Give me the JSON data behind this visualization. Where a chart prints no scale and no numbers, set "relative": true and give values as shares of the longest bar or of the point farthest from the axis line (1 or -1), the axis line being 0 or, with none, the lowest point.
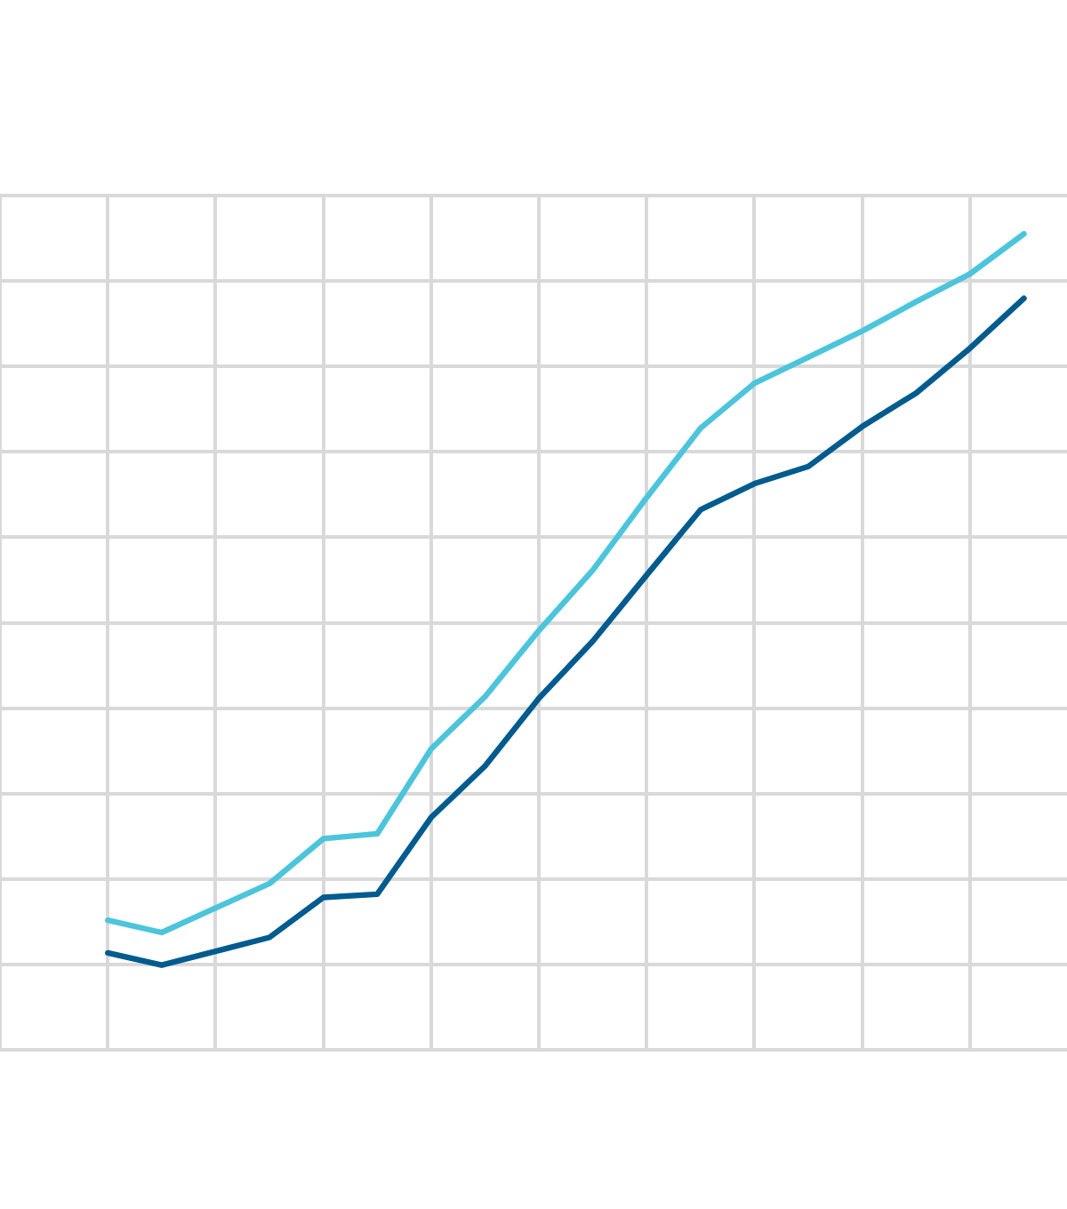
{
  "chart_data": {
    "type": "line",
    "relative": true,
    "grid": true,
    "legend": false,
    "marker": "none",
    "line_style": "solid",
    "categories": [
      null,
      null,
      null,
      null,
      null,
      null,
      null,
      null,
      null,
      null,
      null,
      null,
      null,
      null,
      null,
      null,
      null,
      null
    ],
    "series": [
      {
        "color": "#4cc5dc",
        "values": [
          0.159,
          0.144,
          0.174,
          0.204,
          0.259,
          0.265,
          0.369,
          0.433,
          0.514,
          0.588,
          0.677,
          0.762,
          0.817,
          0.849,
          0.881,
          0.917,
          0.951,
          1
        ]
      },
      {
        "color": "#005b8e",
        "values": [
          0.119,
          0.104,
          0.121,
          0.138,
          0.187,
          0.191,
          0.285,
          0.348,
          0.431,
          0.501,
          0.582,
          0.662,
          0.694,
          0.715,
          0.764,
          0.805,
          0.86,
          0.921
        ]
      }
    ]
  }
}
